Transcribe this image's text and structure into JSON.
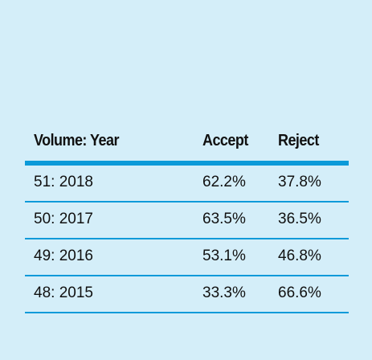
{
  "table": {
    "headers": [
      "Volume: Year",
      "Accept",
      "Reject"
    ],
    "rows": [
      [
        "51: 2018",
        "62.2%",
        "37.8%"
      ],
      [
        "50: 2017",
        "63.5%",
        "36.5%"
      ],
      [
        "49: 2016",
        "53.1%",
        "46.8%"
      ],
      [
        "48: 2015",
        "33.3%",
        "66.6%"
      ]
    ]
  },
  "colors": {
    "background": "#d4eef9",
    "rule": "#0b9ad9",
    "text": "#111111"
  }
}
